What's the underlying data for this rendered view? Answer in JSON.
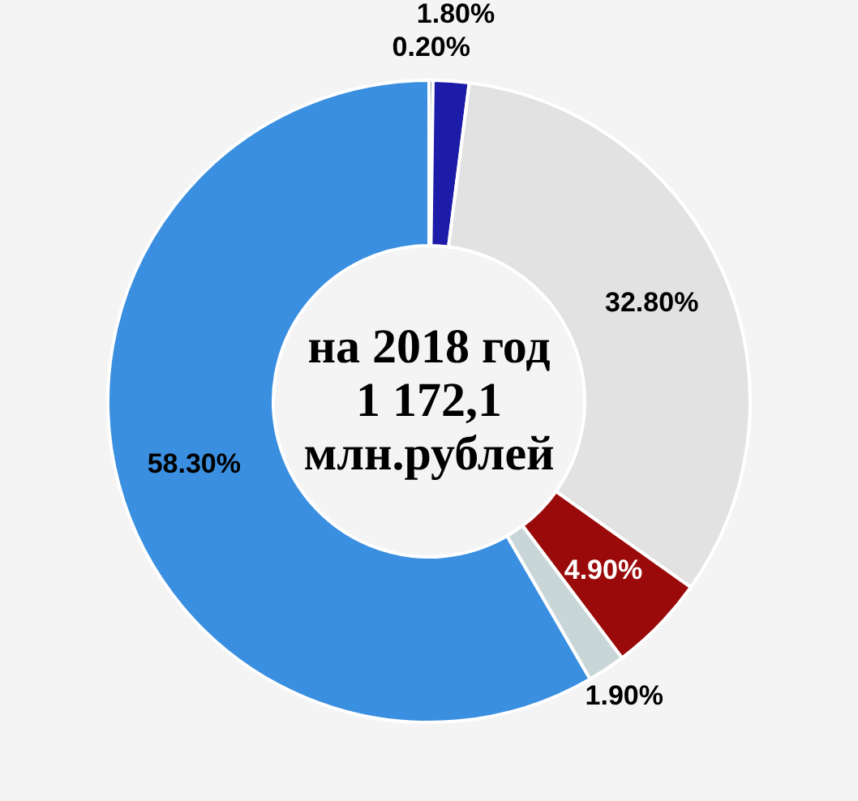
{
  "chart_data": {
    "type": "donut",
    "categories": [
      null,
      null,
      null,
      null,
      null,
      null
    ],
    "values": [
      0.2,
      1.8,
      32.8,
      4.9,
      1.9,
      58.3
    ],
    "value_labels": [
      "0.20%",
      "1.80%",
      "32.80%",
      "4.90%",
      "1.90%",
      "58.30%"
    ],
    "colors": [
      "#6f8f8f",
      "#1c1ca8",
      "#e2e2e2",
      "#9a0a0a",
      "#c9d6d8",
      "#3a8fe0"
    ],
    "annotations": [
      "на 2018 год",
      "1 172,1",
      "млн.рублей"
    ],
    "legend": false
  }
}
